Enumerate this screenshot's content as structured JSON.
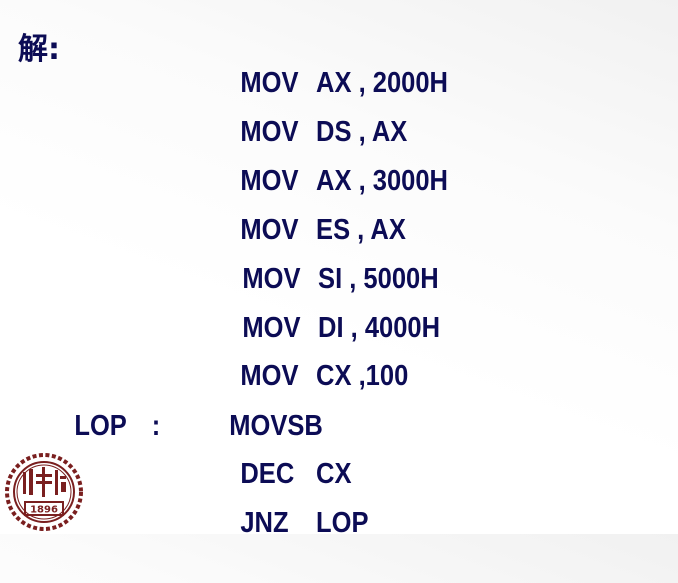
{
  "answer_label": "解:",
  "code_lines": [
    {
      "label": "",
      "colon": "",
      "op": "MOV",
      "args": "AX , 2000H"
    },
    {
      "label": "",
      "colon": "",
      "op": "MOV",
      "args": "DS , AX"
    },
    {
      "label": "",
      "colon": "",
      "op": "MOV",
      "args": "AX , 3000H"
    },
    {
      "label": "",
      "colon": "",
      "op": "MOV",
      "args": "ES , AX"
    },
    {
      "label": "",
      "colon": "",
      "op": "MOV",
      "args": "SI , 5000H"
    },
    {
      "label": "",
      "colon": "",
      "op": "MOV",
      "args": "DI , 4000H"
    },
    {
      "label": "",
      "colon": "",
      "op": "MOV",
      "args": "CX ,100"
    },
    {
      "label": "LOP",
      "colon": ":",
      "op": "MOVSB",
      "args": ""
    },
    {
      "label": "",
      "colon": "",
      "op": "DEC",
      "args": "CX"
    },
    {
      "label": "",
      "colon": "",
      "op": "JNZ",
      "args": "LOP"
    }
  ],
  "logo": {
    "name": "university-seal",
    "year_text": "1896"
  },
  "colors": {
    "text": "#0c0c55",
    "seal": "#7a1f1f"
  }
}
